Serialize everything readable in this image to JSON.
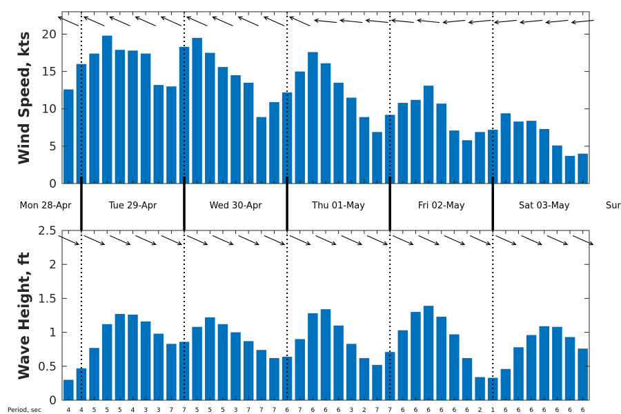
{
  "colors": {
    "bar": "#0072BD",
    "axis": "#262626",
    "arrow": "#000000"
  },
  "chart_data": [
    {
      "type": "bar",
      "ylabel": "Wind Speed, kts",
      "ylim": [
        0,
        23
      ],
      "yticks": [
        0,
        5,
        10,
        15,
        20
      ],
      "values": [
        12.6,
        16,
        17.4,
        19.8,
        17.9,
        17.8,
        17.4,
        13.2,
        13,
        18.3,
        19.5,
        17.5,
        15.6,
        14.5,
        13.5,
        8.9,
        10.9,
        12.2,
        15,
        17.6,
        16.1,
        13.5,
        11.5,
        8.9,
        6.9,
        9.2,
        10.8,
        11.2,
        13.1,
        10.7,
        7.1,
        5.8,
        6.9,
        7.2,
        9.4,
        8.3,
        8.4,
        7.3,
        5.1,
        3.7,
        4
      ],
      "direction_arrows": "wind heading, mostly westward/south-westward"
    },
    {
      "type": "bar",
      "ylabel": "Wave Height, ft",
      "ylim": [
        0,
        2.5
      ],
      "yticks": [
        "0",
        "0.5",
        "1",
        "1.5",
        "2",
        "2.5"
      ],
      "values": [
        0.3,
        0.47,
        0.77,
        1.12,
        1.27,
        1.26,
        1.16,
        0.98,
        0.83,
        0.86,
        1.08,
        1.22,
        1.12,
        1.0,
        0.87,
        0.74,
        0.62,
        0.64,
        0.9,
        1.28,
        1.34,
        1.1,
        0.83,
        0.62,
        0.52,
        0.71,
        1.03,
        1.3,
        1.39,
        1.23,
        0.97,
        0.62,
        0.34,
        0.33,
        0.46,
        0.78,
        0.96,
        1.09,
        1.08,
        0.93,
        0.76
      ],
      "direction_arrows": "wave heading, east-south-east",
      "period_label": "Period, sec",
      "periods": [
        "4",
        "4",
        "5",
        "5",
        "5",
        "4",
        "3",
        "3",
        "7",
        "7",
        "5",
        "5",
        "5",
        "3",
        "7",
        "7",
        "7",
        "6",
        "7",
        "6",
        "6",
        "6",
        "3",
        "2",
        "7",
        "7",
        "6",
        "6",
        "6",
        "6",
        "6",
        "6",
        "2",
        "1",
        "6",
        "6",
        "6",
        "6",
        "6",
        "6",
        "6"
      ]
    }
  ],
  "days": [
    "Mon 28-Apr",
    "Tue 29-Apr",
    "Wed 30-Apr",
    "Thu 01-May",
    "Fri 02-May",
    "Sat 03-May",
    "Sun"
  ]
}
